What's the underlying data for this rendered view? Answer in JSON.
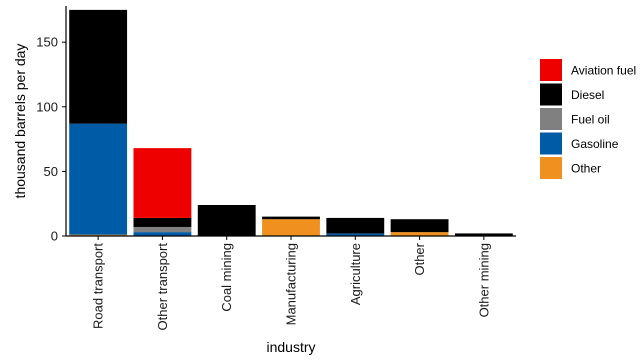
{
  "chart_data": {
    "type": "bar",
    "stacked": true,
    "xlabel": "industry",
    "ylabel": "thousand barrels per day",
    "ylim": [
      0,
      178
    ],
    "yticks": [
      0,
      50,
      100,
      150
    ],
    "grid": false,
    "legend_position": "right",
    "categories": [
      "Road transport",
      "Other transport",
      "Coal mining",
      "Manufacturing",
      "Agriculture",
      "Other",
      "Other mining"
    ],
    "series": [
      {
        "name": "Other",
        "color": "#F0901E",
        "values": [
          1,
          0,
          0,
          13,
          0,
          3,
          0
        ]
      },
      {
        "name": "Gasoline",
        "color": "#005BA6",
        "values": [
          86,
          3,
          0,
          0,
          2,
          0,
          0
        ]
      },
      {
        "name": "Fuel oil",
        "color": "#808080",
        "values": [
          0,
          4,
          0,
          0,
          0,
          0,
          0
        ]
      },
      {
        "name": "Diesel",
        "color": "#000000",
        "values": [
          88,
          7,
          24,
          2,
          12,
          10,
          2
        ]
      },
      {
        "name": "Aviation fuel",
        "color": "#EE0000",
        "values": [
          0,
          54,
          0,
          0,
          0,
          0,
          0
        ]
      }
    ],
    "legend_order": [
      "Aviation fuel",
      "Diesel",
      "Fuel oil",
      "Gasoline",
      "Other"
    ]
  }
}
